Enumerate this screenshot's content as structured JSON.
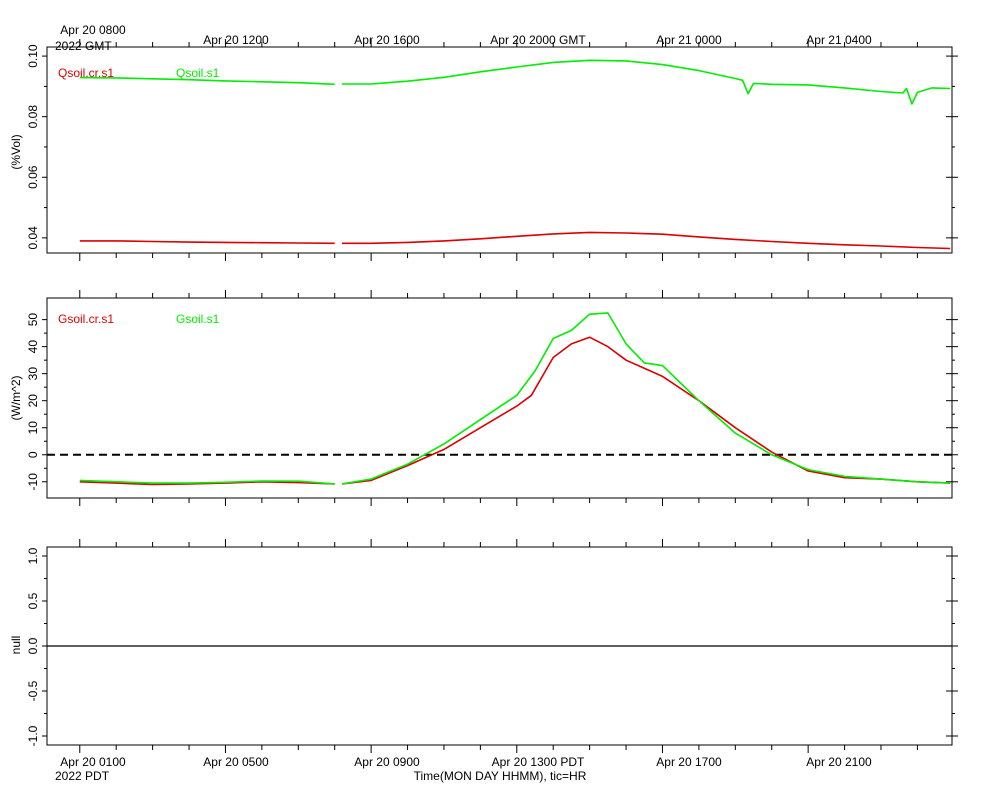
{
  "colors": {
    "red": "#dd0000",
    "green": "#00ee00",
    "axis": "#000000",
    "zero": "#000000"
  },
  "top_axis": {
    "labels": [
      "Apr 20 0800",
      "Apr 20 1200",
      "Apr 20 1600",
      "Apr 20 2000 GMT",
      "Apr 21 0000",
      "Apr 21 0400"
    ],
    "year_label": "2022 GMT"
  },
  "bottom_axis": {
    "labels": [
      "Apr 20 0100",
      "Apr 20 0500",
      "Apr 20 0900",
      "Apr 20 1300 PDT",
      "Apr 20 1700",
      "Apr 20 2100"
    ],
    "year_label": "2022 PDT",
    "title": "Time(MON DAY HHMM), tic=HR"
  },
  "chart_data": [
    {
      "type": "line",
      "ylabel": "(%Vol)",
      "ylim": [
        0.035,
        0.103
      ],
      "yticks": [
        "0.04",
        "0.06",
        "0.08",
        "0.10"
      ],
      "x_hours_pdt_range": [
        0,
        23.9
      ],
      "series": [
        {
          "name": "Qsoil.cr.s1",
          "color": "red",
          "segments": [
            [
              [
                0,
                0.039
              ],
              [
                1,
                0.039
              ],
              [
                2,
                0.0388
              ],
              [
                3,
                0.0386
              ],
              [
                4,
                0.0385
              ],
              [
                5,
                0.0384
              ],
              [
                6,
                0.0383
              ],
              [
                7,
                0.0382
              ]
            ],
            [
              [
                7.2,
                0.0382
              ],
              [
                8,
                0.0382
              ],
              [
                9,
                0.0385
              ],
              [
                10,
                0.039
              ],
              [
                11,
                0.0397
              ],
              [
                12,
                0.0405
              ],
              [
                13,
                0.0413
              ],
              [
                14,
                0.0418
              ],
              [
                15,
                0.0416
              ],
              [
                16,
                0.0412
              ],
              [
                17,
                0.0403
              ],
              [
                18,
                0.0395
              ],
              [
                19,
                0.0388
              ],
              [
                20,
                0.0382
              ],
              [
                21,
                0.0377
              ],
              [
                22,
                0.0373
              ],
              [
                23,
                0.0368
              ],
              [
                23.9,
                0.0365
              ]
            ]
          ]
        },
        {
          "name": "Qsoil.s1",
          "color": "green",
          "segments": [
            [
              [
                0,
                0.0929
              ],
              [
                1,
                0.0928
              ],
              [
                2,
                0.0925
              ],
              [
                3,
                0.0922
              ],
              [
                4,
                0.0918
              ],
              [
                5,
                0.0915
              ],
              [
                6,
                0.0912
              ],
              [
                7,
                0.0907
              ]
            ],
            [
              [
                7.2,
                0.0908
              ],
              [
                8,
                0.0908
              ],
              [
                9,
                0.0917
              ],
              [
                10,
                0.093
              ],
              [
                11,
                0.0948
              ],
              [
                12,
                0.0964
              ],
              [
                13,
                0.0979
              ],
              [
                14,
                0.0986
              ],
              [
                15,
                0.0984
              ],
              [
                16,
                0.0972
              ],
              [
                17,
                0.0952
              ],
              [
                18,
                0.0926
              ],
              [
                18.2,
                0.092
              ],
              [
                18.35,
                0.0876
              ],
              [
                18.5,
                0.091
              ],
              [
                19,
                0.0907
              ],
              [
                20,
                0.0905
              ],
              [
                21,
                0.0895
              ],
              [
                22,
                0.0883
              ],
              [
                22.6,
                0.0878
              ],
              [
                22.7,
                0.0893
              ],
              [
                22.85,
                0.0842
              ],
              [
                23,
                0.088
              ],
              [
                23.4,
                0.0895
              ],
              [
                23.9,
                0.0893
              ]
            ]
          ]
        }
      ]
    },
    {
      "type": "line",
      "ylabel": "(W/m^2)",
      "ylim": [
        -16,
        58
      ],
      "yticks": [
        "-10",
        "0",
        "10",
        "20",
        "30",
        "40",
        "50"
      ],
      "zero_line": 0,
      "x_hours_pdt_range": [
        0,
        23.9
      ],
      "series": [
        {
          "name": "Gsoil.cr.s1",
          "color": "red",
          "segments": [
            [
              [
                0,
                -10
              ],
              [
                1,
                -10.5
              ],
              [
                2,
                -11
              ],
              [
                3,
                -10.8
              ],
              [
                4,
                -10.5
              ],
              [
                5,
                -10
              ],
              [
                6,
                -10.3
              ],
              [
                7,
                -10.8
              ]
            ],
            [
              [
                7.2,
                -10.8
              ],
              [
                8,
                -9.5
              ],
              [
                9,
                -4
              ],
              [
                10,
                2
              ],
              [
                11,
                10
              ],
              [
                12,
                18
              ],
              [
                12.4,
                22
              ],
              [
                13,
                36
              ],
              [
                13.5,
                41
              ],
              [
                14,
                43.5
              ],
              [
                14.5,
                40
              ],
              [
                15,
                35
              ],
              [
                16,
                29
              ],
              [
                17,
                20
              ],
              [
                18,
                10
              ],
              [
                19,
                1
              ],
              [
                20,
                -6
              ],
              [
                21,
                -8.5
              ],
              [
                22,
                -9
              ],
              [
                23,
                -10
              ],
              [
                23.9,
                -10.5
              ]
            ]
          ]
        },
        {
          "name": "Gsoil.s1",
          "color": "green",
          "segments": [
            [
              [
                0,
                -9.5
              ],
              [
                1,
                -10
              ],
              [
                2,
                -10.5
              ],
              [
                3,
                -10.5
              ],
              [
                4,
                -10.2
              ],
              [
                5,
                -9.7
              ],
              [
                6,
                -9.8
              ],
              [
                7,
                -10.8
              ]
            ],
            [
              [
                7.2,
                -10.8
              ],
              [
                8,
                -9
              ],
              [
                9,
                -3.5
              ],
              [
                10,
                4
              ],
              [
                11,
                13
              ],
              [
                12,
                22
              ],
              [
                12.5,
                31
              ],
              [
                13,
                43
              ],
              [
                13.5,
                46
              ],
              [
                14,
                52
              ],
              [
                14.5,
                52.5
              ],
              [
                15,
                41
              ],
              [
                15.5,
                34
              ],
              [
                16,
                33
              ],
              [
                17,
                20
              ],
              [
                18,
                8
              ],
              [
                19,
                0
              ],
              [
                20,
                -5.5
              ],
              [
                21,
                -8
              ],
              [
                22,
                -9
              ],
              [
                23,
                -10
              ],
              [
                23.9,
                -10.5
              ]
            ]
          ]
        }
      ]
    },
    {
      "type": "line",
      "ylabel": "null",
      "ylim": [
        -1.1,
        1.1
      ],
      "yticks": [
        "-1.0",
        "-0.5",
        "0.0",
        "0.5",
        "1.0"
      ],
      "zero_line": 0,
      "series": []
    }
  ]
}
